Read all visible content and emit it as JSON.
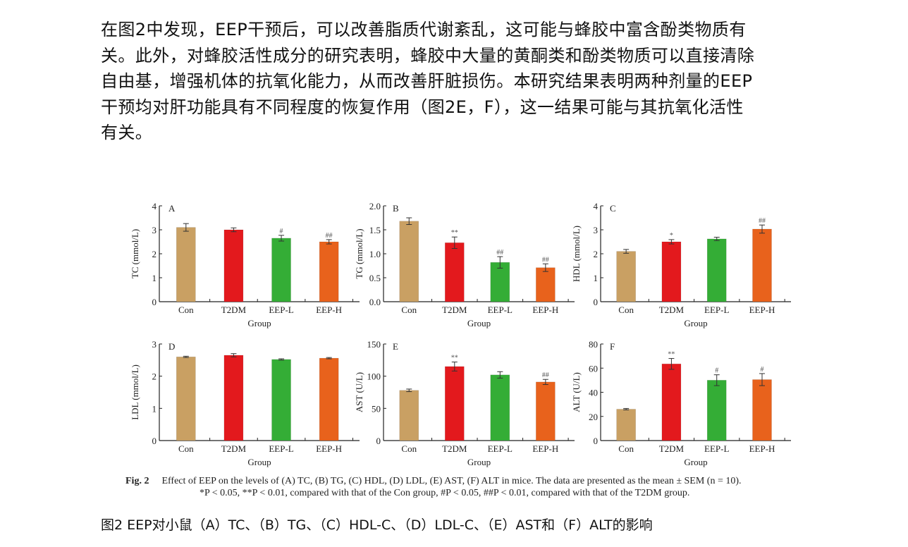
{
  "paragraph": {
    "lines": [
      "在图2中发现，EEP干预后，可以改善脂质代谢紊乱，这可能与蜂胶中富含酚类物质有",
      "关。此外，对蜂胶活性成分的研究表明，蜂胶中大量的黄酮类和酚类物质可以直接清除",
      "自由基，增强机体的抗氧化能力，从而改善肝脏损伤。本研究结果表明两种剂量的EEP",
      "干预均对肝功能具有不同程度的恢复作用（图2E，F），这一结果可能与其抗氧化活性",
      "有关。"
    ]
  },
  "colors": {
    "Con": "#c9a063",
    "T2DM": "#e3191d",
    "EEP-L": "#34ad36",
    "EEP-H": "#e8621c"
  },
  "chart_data": [
    {
      "type": "bar",
      "panel": "A",
      "ylabel": "TC (mmol/L)",
      "xlabel": "Group",
      "categories": [
        "Con",
        "T2DM",
        "EEP-L",
        "EEP-H"
      ],
      "values": [
        3.1,
        3.0,
        2.65,
        2.5
      ],
      "errors": [
        0.16,
        0.08,
        0.12,
        0.09
      ],
      "significance": [
        "",
        "",
        "#",
        "##"
      ],
      "ylim": [
        0,
        4
      ],
      "yticks": [
        "0",
        "1",
        "2",
        "3",
        "4"
      ]
    },
    {
      "type": "bar",
      "panel": "B",
      "ylabel": "TG (mmol/L)",
      "xlabel": "Group",
      "categories": [
        "Con",
        "T2DM",
        "EEP-L",
        "EEP-H"
      ],
      "values": [
        1.68,
        1.23,
        0.82,
        0.71
      ],
      "errors": [
        0.07,
        0.12,
        0.12,
        0.08
      ],
      "significance": [
        "",
        "**",
        "##",
        "##"
      ],
      "ylim": [
        0,
        2
      ],
      "yticks": [
        "0.0",
        "0.5",
        "1.0",
        "1.5",
        "2.0"
      ]
    },
    {
      "type": "bar",
      "panel": "C",
      "ylabel": "HDL (mmol/L)",
      "xlabel": "Group",
      "categories": [
        "Con",
        "T2DM",
        "EEP-L",
        "EEP-H"
      ],
      "values": [
        2.1,
        2.5,
        2.62,
        3.03
      ],
      "errors": [
        0.08,
        0.09,
        0.07,
        0.17
      ],
      "significance": [
        "",
        "*",
        "",
        "##"
      ],
      "ylim": [
        0,
        4
      ],
      "yticks": [
        "0",
        "1",
        "2",
        "3",
        "4"
      ]
    },
    {
      "type": "bar",
      "panel": "D",
      "ylabel": "LDL (mmol/L)",
      "xlabel": "Group",
      "categories": [
        "Con",
        "T2DM",
        "EEP-L",
        "EEP-H"
      ],
      "values": [
        2.6,
        2.65,
        2.52,
        2.56
      ],
      "errors": [
        0.02,
        0.05,
        0.02,
        0.02
      ],
      "significance": [
        "",
        "",
        "",
        ""
      ],
      "ylim": [
        0,
        3
      ],
      "yticks": [
        "0",
        "1",
        "2",
        "3"
      ]
    },
    {
      "type": "bar",
      "panel": "E",
      "ylabel": "AST (U/L)",
      "xlabel": "Group",
      "categories": [
        "Con",
        "T2DM",
        "EEP-L",
        "EEP-H"
      ],
      "values": [
        78,
        115,
        102,
        91
      ],
      "errors": [
        2,
        7,
        5,
        4
      ],
      "significance": [
        "",
        "**",
        "",
        "##"
      ],
      "ylim": [
        0,
        150
      ],
      "yticks": [
        "0",
        "50",
        "100",
        "150"
      ]
    },
    {
      "type": "bar",
      "panel": "F",
      "ylabel": "ALT (U/L)",
      "xlabel": "Group",
      "categories": [
        "Con",
        "T2DM",
        "EEP-L",
        "EEP-H"
      ],
      "values": [
        26,
        63.5,
        50,
        50.5
      ],
      "errors": [
        0.6,
        4.5,
        4.5,
        5
      ],
      "significance": [
        "",
        "**",
        "#",
        "#"
      ],
      "ylim": [
        0,
        80
      ],
      "yticks": [
        "0",
        "20",
        "40",
        "60",
        "80"
      ]
    }
  ],
  "caption": {
    "label": "Fig. 2",
    "line1": "Effect of EEP on the levels of (A) TC, (B) TG, (C) HDL, (D) LDL, (E) AST, (F) ALT in mice. The data are presented as the mean ± SEM (n = 10).",
    "line2": "*P < 0.05, **P < 0.01, compared with that of the Con group, #P < 0.05, ##P < 0.01, compared with that of the T2DM group."
  },
  "cn_caption": "图2  EEP对小鼠（A）TC、（B）TG、（C）HDL-C、（D）LDL-C、（E）AST和（F）ALT的影响"
}
